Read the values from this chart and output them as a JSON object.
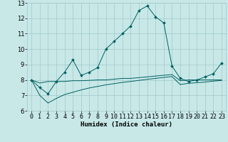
{
  "xlabel": "Humidex (Indice chaleur)",
  "x_values": [
    0,
    1,
    2,
    3,
    4,
    5,
    6,
    7,
    8,
    9,
    10,
    11,
    12,
    13,
    14,
    15,
    16,
    17,
    18,
    19,
    20,
    21,
    22,
    23
  ],
  "line1": [
    8.0,
    7.5,
    7.1,
    7.9,
    8.5,
    9.3,
    8.3,
    8.5,
    8.8,
    10.0,
    10.5,
    11.0,
    11.5,
    12.5,
    12.8,
    12.1,
    11.7,
    8.9,
    8.1,
    7.9,
    8.0,
    8.2,
    8.4,
    9.1
  ],
  "line2": [
    8.0,
    7.8,
    7.9,
    7.9,
    7.9,
    7.95,
    7.95,
    7.97,
    8.0,
    8.0,
    8.05,
    8.1,
    8.1,
    8.15,
    8.2,
    8.25,
    8.3,
    8.35,
    7.95,
    8.0,
    8.0,
    8.0,
    8.0,
    8.0
  ],
  "line3": [
    8.0,
    7.0,
    6.5,
    6.8,
    7.05,
    7.2,
    7.35,
    7.48,
    7.58,
    7.68,
    7.76,
    7.84,
    7.9,
    7.97,
    8.04,
    8.1,
    8.16,
    8.22,
    7.7,
    7.78,
    7.82,
    7.86,
    7.92,
    7.97
  ],
  "bg_color": "#c8e8e8",
  "grid_color": "#a0c8c8",
  "line_color": "#006060",
  "marker": "D",
  "marker_size": 2.0,
  "linewidth": 0.7,
  "ylim": [
    6,
    13
  ],
  "yticks": [
    6,
    7,
    8,
    9,
    10,
    11,
    12,
    13
  ],
  "xtick_labels": [
    "0",
    "1",
    "2",
    "3",
    "4",
    "5",
    "6",
    "7",
    "8",
    "9",
    "10",
    "11",
    "12",
    "13",
    "14",
    "15",
    "16",
    "17",
    "18",
    "19",
    "20",
    "21",
    "22",
    "23"
  ],
  "xlabel_fontsize": 6.5,
  "tick_fontsize": 6.0,
  "ylabel_fontsize": 6.0
}
